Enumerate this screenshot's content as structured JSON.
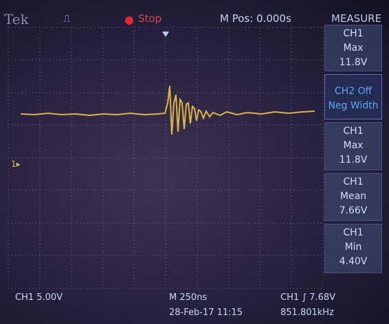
{
  "header": {
    "brand": "Tek",
    "run_state": "Stop",
    "position": "M Pos: 0.000s",
    "menu": "MEASURE"
  },
  "measurements": [
    {
      "source": "CH1",
      "type": "Max",
      "value": "11.8V"
    },
    {
      "source": "CH2 Off",
      "type": "Neg Width"
    },
    {
      "source": "CH1",
      "type": "Max",
      "value": "11.8V"
    },
    {
      "source": "CH1",
      "type": "Mean",
      "value": "7.66V"
    },
    {
      "source": "CH1",
      "type": "Min",
      "value": "4.40V"
    }
  ],
  "channel_marker": "1",
  "footer": {
    "ch1_scale": "CH1 5.00V",
    "timebase": "M 250ns",
    "datetime": "28-Feb-17 11:15",
    "trigger_source": "CH1",
    "trigger_level": "7.68V",
    "frequency": "851.801kHz"
  }
}
